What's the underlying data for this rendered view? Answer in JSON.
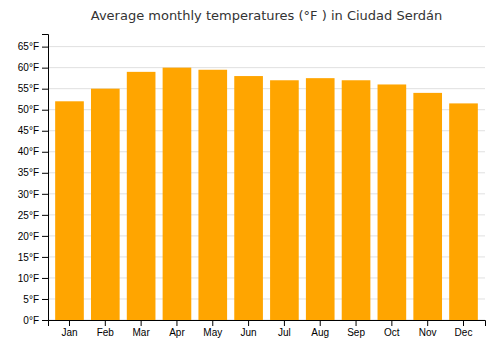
{
  "chart_data": {
    "type": "bar",
    "title": "Average monthly temperatures (°F ) in Ciudad Serdán",
    "categories": [
      "Jan",
      "Feb",
      "Mar",
      "Apr",
      "May",
      "Jun",
      "Jul",
      "Aug",
      "Sep",
      "Oct",
      "Nov",
      "Dec"
    ],
    "values": [
      52.0,
      55.0,
      59.0,
      60.0,
      59.5,
      58.0,
      57.0,
      57.5,
      57.0,
      56.0,
      54.0,
      51.5
    ],
    "color": "#FFA500",
    "ylim": [
      0,
      68
    ],
    "yticks": [
      {
        "value": 0,
        "label": "0°F"
      },
      {
        "value": 5,
        "label": "5°F"
      },
      {
        "value": 10,
        "label": "10°F"
      },
      {
        "value": 15,
        "label": "15°F"
      },
      {
        "value": 20,
        "label": "20°F"
      },
      {
        "value": 25,
        "label": "25°F"
      },
      {
        "value": 30,
        "label": "30°F"
      },
      {
        "value": 35,
        "label": "35°F"
      },
      {
        "value": 40,
        "label": "40°F"
      },
      {
        "value": 45,
        "label": "45°F"
      },
      {
        "value": 50,
        "label": "50°F"
      },
      {
        "value": 55,
        "label": "55°F"
      },
      {
        "value": 60,
        "label": "60°F"
      },
      {
        "value": 65,
        "label": "65°F"
      }
    ],
    "grid": true
  }
}
